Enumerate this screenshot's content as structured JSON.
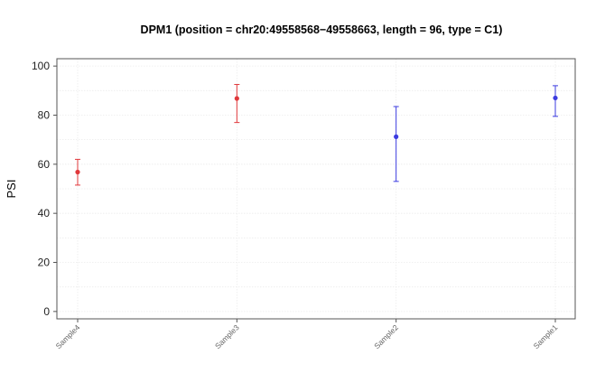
{
  "chart_data": {
    "type": "scatter",
    "title": "DPM1 (position = chr20:49558568−49558663, length = 96, type = C1)",
    "xlabel": "",
    "ylabel": "PSI",
    "ylim": [
      -3,
      103
    ],
    "yticks": [
      0,
      20,
      40,
      60,
      80,
      100
    ],
    "grid": true,
    "categories": [
      "Sample4",
      "Sample3",
      "Sample2",
      "Sample1"
    ],
    "points": [
      {
        "category": "Sample4",
        "value": 56.8,
        "lower": 51.5,
        "upper": 62.0,
        "color": "#e0383b"
      },
      {
        "category": "Sample3",
        "value": 86.8,
        "lower": 77.0,
        "upper": 92.5,
        "color": "#e0383b"
      },
      {
        "category": "Sample2",
        "value": 71.2,
        "lower": 53.0,
        "upper": 83.5,
        "color": "#3b3be0"
      },
      {
        "category": "Sample1",
        "value": 87.0,
        "lower": 79.5,
        "upper": 92.0,
        "color": "#3b3be0"
      }
    ]
  }
}
